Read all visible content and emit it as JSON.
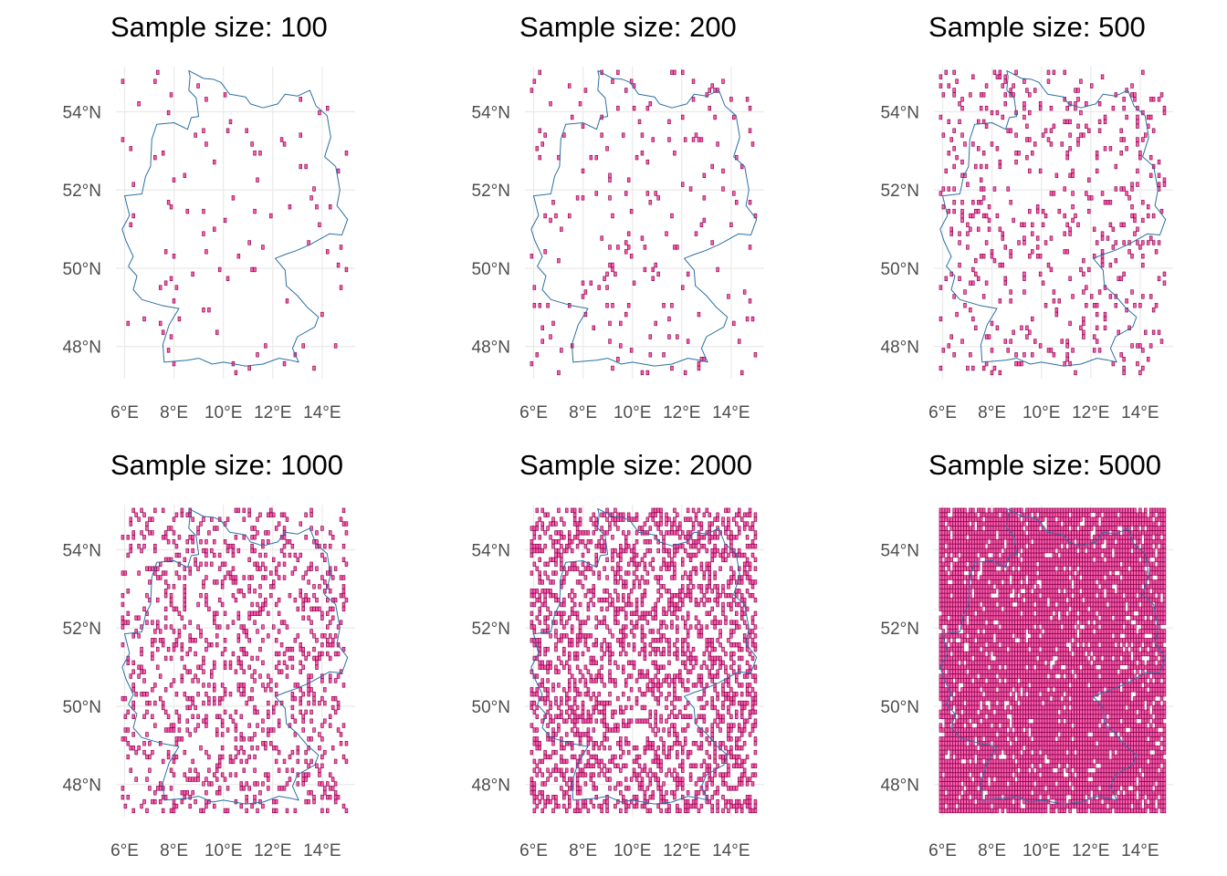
{
  "figure": {
    "panel_count": 6,
    "colors": {
      "cell_fill": "#ff5fb0",
      "cell_outline": "#8b0a50",
      "border": "#2c6fa3",
      "grid": "#ebebeb",
      "tick_text": "#4d4d4d"
    }
  },
  "chart_data": [
    {
      "type": "scatter",
      "title": "Sample size: 100",
      "sample_size": 100,
      "x_ticks": [
        "6°E",
        "8°E",
        "10°E",
        "12°E",
        "14°E"
      ],
      "y_ticks": [
        "48°N",
        "50°N",
        "52°N",
        "54°N"
      ],
      "xlim": [
        5.87,
        15.04
      ],
      "ylim": [
        47.27,
        55.06
      ],
      "grid": true,
      "legend": "none"
    },
    {
      "type": "scatter",
      "title": "Sample size: 200",
      "sample_size": 200,
      "x_ticks": [
        "6°E",
        "8°E",
        "10°E",
        "12°E",
        "14°E"
      ],
      "y_ticks": [
        "48°N",
        "50°N",
        "52°N",
        "54°N"
      ],
      "xlim": [
        5.87,
        15.04
      ],
      "ylim": [
        47.27,
        55.06
      ],
      "grid": true,
      "legend": "none"
    },
    {
      "type": "scatter",
      "title": "Sample size: 500",
      "sample_size": 500,
      "x_ticks": [
        "6°E",
        "8°E",
        "10°E",
        "12°E",
        "14°E"
      ],
      "y_ticks": [
        "48°N",
        "50°N",
        "52°N",
        "54°N"
      ],
      "xlim": [
        5.87,
        15.04
      ],
      "ylim": [
        47.27,
        55.06
      ],
      "grid": true,
      "legend": "none"
    },
    {
      "type": "scatter",
      "title": "Sample size: 1000",
      "sample_size": 1000,
      "x_ticks": [
        "6°E",
        "8°E",
        "10°E",
        "12°E",
        "14°E"
      ],
      "y_ticks": [
        "48°N",
        "50°N",
        "52°N",
        "54°N"
      ],
      "xlim": [
        5.87,
        15.04
      ],
      "ylim": [
        47.27,
        55.06
      ],
      "grid": true,
      "legend": "none"
    },
    {
      "type": "scatter",
      "title": "Sample size: 2000",
      "sample_size": 2000,
      "x_ticks": [
        "6°E",
        "8°E",
        "10°E",
        "12°E",
        "14°E"
      ],
      "y_ticks": [
        "48°N",
        "50°N",
        "52°N",
        "54°N"
      ],
      "xlim": [
        5.87,
        15.04
      ],
      "ylim": [
        47.27,
        55.06
      ],
      "grid": true,
      "legend": "none"
    },
    {
      "type": "scatter",
      "title": "Sample size: 5000",
      "sample_size": 5000,
      "x_ticks": [
        "6°E",
        "8°E",
        "10°E",
        "12°E",
        "14°E"
      ],
      "y_ticks": [
        "48°N",
        "50°N",
        "52°N",
        "54°N"
      ],
      "xlim": [
        5.87,
        15.04
      ],
      "ylim": [
        47.27,
        55.06
      ],
      "grid": true,
      "legend": "none"
    }
  ]
}
